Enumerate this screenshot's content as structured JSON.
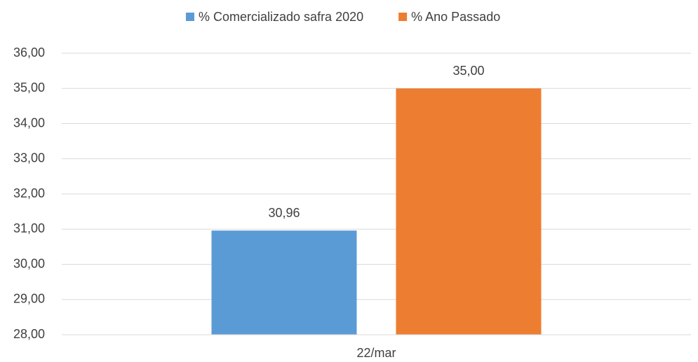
{
  "chart_data": {
    "type": "bar",
    "categories": [
      "22/mar"
    ],
    "series": [
      {
        "name": "% Comercializado safra 2020",
        "color": "#5b9bd5",
        "values": [
          30.96
        ],
        "value_labels": [
          "30,96"
        ]
      },
      {
        "name": "% Ano Passado",
        "color": "#ed7d31",
        "values": [
          35
        ],
        "value_labels": [
          "35,00"
        ]
      }
    ],
    "ylim": [
      28,
      36
    ],
    "yticks": [
      {
        "value": 28,
        "label": "28,00"
      },
      {
        "value": 29,
        "label": "29,00"
      },
      {
        "value": 30,
        "label": "30,00"
      },
      {
        "value": 31,
        "label": "31,00"
      },
      {
        "value": 32,
        "label": "32,00"
      },
      {
        "value": 33,
        "label": "33,00"
      },
      {
        "value": 34,
        "label": "34,00"
      },
      {
        "value": 35,
        "label": "35,00"
      },
      {
        "value": 36,
        "label": "36,00"
      }
    ],
    "grid": true,
    "legend": "top"
  }
}
